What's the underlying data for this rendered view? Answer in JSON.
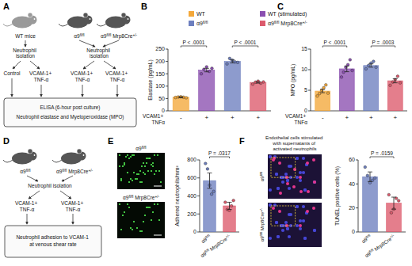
{
  "panel_labels": [
    "A",
    "B",
    "C",
    "D",
    "E",
    "F"
  ],
  "diagram_a": {
    "mice": [
      "WT mice",
      "α9fl/fl",
      "α9fl/fl Mrp8Cre+/-"
    ],
    "steps": [
      "Neutrophil isolation",
      "Neutrophil isolation"
    ],
    "conditions": [
      "Control",
      "VCAM-1+ TNF-α",
      "VCAM-1+ TNF-α",
      "VCAM-1+ TNF-α"
    ],
    "readout": [
      "ELISA (6-hour post culture)",
      "Neutrophil elastase and Myeloperoxidase (MPO)"
    ]
  },
  "diagram_d": {
    "mice": [
      "α9fl/fl",
      "α9fl/fl Mrp8Cre+/-"
    ],
    "step": "Neutrophil isolation",
    "conditions": [
      "VCAM-1+ TNF-α",
      "VCAM-1+ TNF-α"
    ],
    "readout": "Neutrophil adhesion to VCAM-1 at venous shear rate"
  },
  "shared_legend": {
    "entries": [
      {
        "name": "WT",
        "color": "#f4a83a"
      },
      {
        "name": "WT (stimulated)",
        "color": "#8a4fb0"
      },
      {
        "name": "α9fl/fl",
        "color": "#6d7fbf"
      },
      {
        "name": "α9fl/fl Mrp8Cre+/-",
        "color": "#dc5a6c"
      }
    ]
  },
  "images_e": {
    "labels": [
      "α9fl/fl",
      "α9fl/fl Mrp8Cre+/-"
    ]
  },
  "images_f": {
    "title": "Endothelial cells stimulated with supernatants of activated neutrophils",
    "labels": [
      "α9fl/fl",
      "α9fl/fl Mrp8Cre+/-"
    ]
  },
  "chart_data": [
    {
      "type": "bar",
      "ylabel": "Elastase (pg/mL)",
      "xlabel": "VCAM1+ TNFα",
      "categories": [
        "-",
        "+",
        "+",
        "+"
      ],
      "values": [
        55,
        165,
        200,
        115
      ],
      "errors": [
        2,
        7,
        6,
        3
      ],
      "points": [
        [
          54,
          56,
          57,
          55,
          53
        ],
        [
          150,
          168,
          178,
          160,
          172
        ],
        [
          190,
          212,
          205,
          198,
          196
        ],
        [
          108,
          116,
          120,
          112,
          117
        ]
      ],
      "colors": [
        "#f4a83a",
        "#8a4fb0",
        "#6d7fbf",
        "#dc5a6c"
      ],
      "ylim": [
        0,
        250
      ],
      "yticks": [
        0,
        50,
        100,
        150,
        200,
        250
      ],
      "annotations": [
        "P < .0001",
        "P < .0001"
      ]
    },
    {
      "type": "bar",
      "ylabel": "MPO (pg/mL)",
      "xlabel": "VCAM1+ TNFα",
      "categories": [
        "-",
        "+",
        "+",
        "+"
      ],
      "values": [
        4.8,
        10.2,
        11.0,
        7.3
      ],
      "errors": [
        0.4,
        0.7,
        0.4,
        0.5
      ],
      "points": [
        [
          3.6,
          4.2,
          5.0,
          5.6,
          6.3,
          4.3
        ],
        [
          8.2,
          9.4,
          10.6,
          11.2,
          12.4,
          9.8
        ],
        [
          10.2,
          11.0,
          11.6,
          12.0,
          10.6
        ],
        [
          6.2,
          7.0,
          7.6,
          8.4,
          6.8
        ]
      ],
      "colors": [
        "#f4a83a",
        "#8a4fb0",
        "#6d7fbf",
        "#dc5a6c"
      ],
      "ylim": [
        0,
        15
      ],
      "yticks": [
        0,
        5,
        10,
        15
      ],
      "annotations": [
        "P < .0001",
        "P = .0003"
      ]
    },
    {
      "type": "bar",
      "ylabel": "Adhered neutrophils/mm²",
      "categories": [
        "α9fl/fl",
        "α9fl/fl Mrp8Cre+/-"
      ],
      "values": [
        570,
        290
      ],
      "errors": [
        85,
        40
      ],
      "points": [
        [
          760,
          700,
          520,
          420,
          450
        ],
        [
          330,
          250,
          240,
          290,
          350
        ]
      ],
      "colors": [
        "#6d7fbf",
        "#dc5a6c"
      ],
      "ylim": [
        0,
        800
      ],
      "yticks": [
        0,
        200,
        400,
        600,
        800
      ],
      "annotations": [
        "P = .0317"
      ]
    },
    {
      "type": "bar",
      "ylabel": "TUNEL positive cells (%)",
      "categories": [
        "α9fl/fl",
        "α9fl/fl Mrp8Cre+/-"
      ],
      "values": [
        46,
        24
      ],
      "errors": [
        4,
        5
      ],
      "points": [
        [
          54,
          47,
          41,
          43,
          45
        ],
        [
          31,
          16,
          19,
          28,
          26
        ]
      ],
      "colors": [
        "#6d7fbf",
        "#dc5a6c"
      ],
      "ylim": [
        0,
        60
      ],
      "yticks": [
        0,
        20,
        40,
        60
      ],
      "annotations": [
        "P = .0159"
      ]
    }
  ]
}
